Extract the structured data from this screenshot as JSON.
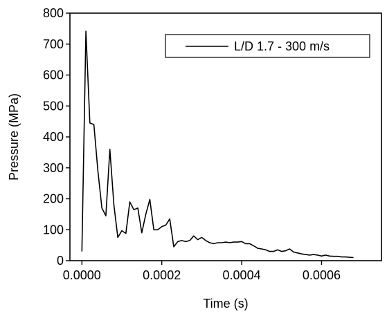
{
  "chart_data": {
    "type": "line",
    "title": "",
    "xlabel": "Time (s)",
    "ylabel": "Pressure (MPa)",
    "xlim": [
      -3e-05,
      0.00075
    ],
    "ylim": [
      0,
      800
    ],
    "x_ticks": [
      0.0,
      0.0002,
      0.0004,
      0.0006
    ],
    "x_tick_labels": [
      "0.0000",
      "0.0002",
      "0.0004",
      "0.0006"
    ],
    "y_ticks": [
      0,
      100,
      200,
      300,
      400,
      500,
      600,
      700,
      800
    ],
    "y_tick_labels": [
      "0",
      "100",
      "200",
      "300",
      "400",
      "500",
      "600",
      "700",
      "800"
    ],
    "grid": false,
    "legend_position": "top-right",
    "line_color": "#000000",
    "series": [
      {
        "name": "L/D 1.7 - 300 m/s",
        "x": [
          0.0,
          1e-05,
          2e-05,
          3e-05,
          4e-05,
          5e-05,
          6e-05,
          7e-05,
          8e-05,
          9e-05,
          0.0001,
          0.00011,
          0.00012,
          0.00013,
          0.00014,
          0.00015,
          0.00016,
          0.00017,
          0.00018,
          0.00019,
          0.0002,
          0.00021,
          0.00022,
          0.00023,
          0.00024,
          0.00025,
          0.00026,
          0.00027,
          0.00028,
          0.00029,
          0.0003,
          0.00031,
          0.00032,
          0.00033,
          0.00034,
          0.00035,
          0.00036,
          0.00037,
          0.00038,
          0.00039,
          0.0004,
          0.00041,
          0.00042,
          0.00043,
          0.00044,
          0.00045,
          0.00046,
          0.00047,
          0.00048,
          0.00049,
          0.0005,
          0.00051,
          0.00052,
          0.00053,
          0.00054,
          0.00055,
          0.00056,
          0.00057,
          0.00058,
          0.00059,
          0.0006,
          0.00061,
          0.00062,
          0.00063,
          0.00064,
          0.00065,
          0.00066,
          0.00067,
          0.00068
        ],
        "y": [
          30,
          742,
          445,
          440,
          290,
          170,
          145,
          360,
          180,
          75,
          97,
          88,
          190,
          165,
          170,
          90,
          150,
          198,
          100,
          100,
          110,
          115,
          135,
          45,
          62,
          65,
          62,
          65,
          80,
          68,
          75,
          65,
          58,
          55,
          58,
          58,
          60,
          58,
          60,
          60,
          62,
          55,
          55,
          48,
          40,
          38,
          35,
          30,
          30,
          35,
          30,
          32,
          38,
          28,
          25,
          22,
          20,
          18,
          20,
          18,
          15,
          18,
          15,
          14,
          14,
          12,
          12,
          11,
          10
        ]
      }
    ]
  }
}
